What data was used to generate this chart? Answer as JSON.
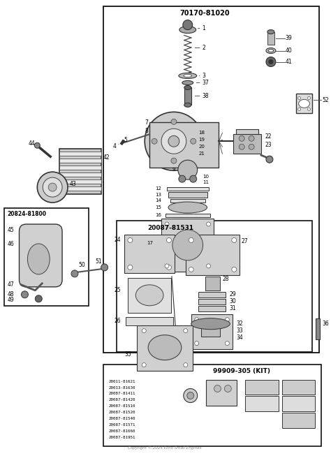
{
  "copyright": "Copyright © 2024 Echo Small Engines",
  "main_diagram_label": "70170-81020",
  "kit_label1": "20087-81531",
  "kit_label2": "99909-305 (KIT)",
  "sub_box_label": "20824-81800",
  "part_numbers_kit": [
    "20011-81621",
    "20013-81630",
    "20087-81411",
    "20087-81420",
    "20087-81510",
    "20087-81520",
    "20087-81540",
    "20087-81571",
    "20087-81660",
    "20087-81951"
  ]
}
